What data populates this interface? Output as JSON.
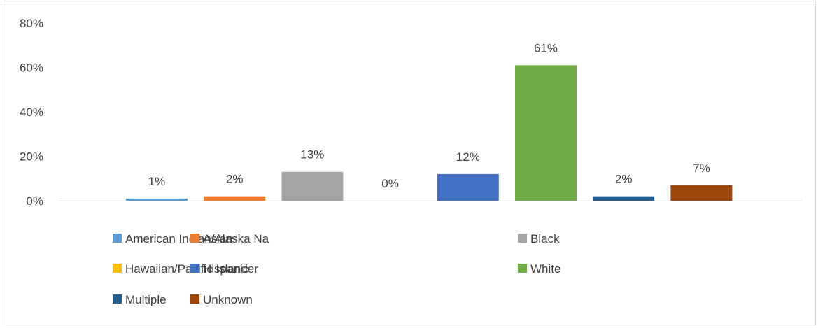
{
  "chart_data": {
    "type": "bar",
    "categories": [
      "American Indian/Alaska Na",
      "Asian",
      "Black",
      "Hawaiian/Pacific Islander",
      "Hispanic",
      "White",
      "Multiple",
      "Unknown"
    ],
    "values": [
      1,
      2,
      13,
      0,
      12,
      61,
      2,
      7
    ],
    "data_labels": [
      "1%",
      "2%",
      "13%",
      "0%",
      "12%",
      "61%",
      "2%",
      "7%"
    ],
    "colors": [
      "#5B9BD5",
      "#ED7D31",
      "#A5A5A5",
      "#FFC000",
      "#4472C4",
      "#70AD47",
      "#255E91",
      "#9E480E"
    ],
    "y_ticks": [
      "0%",
      "20%",
      "40%",
      "60%",
      "80%"
    ],
    "ylim": [
      0,
      80
    ],
    "grid": false,
    "legend_position": "bottom",
    "legend": [
      "American Indian/Alaska Na",
      "Asian",
      "Black",
      "Hawaiian/Pacific Islander",
      "Hispanic",
      "White",
      "Multiple",
      "Unknown"
    ]
  }
}
